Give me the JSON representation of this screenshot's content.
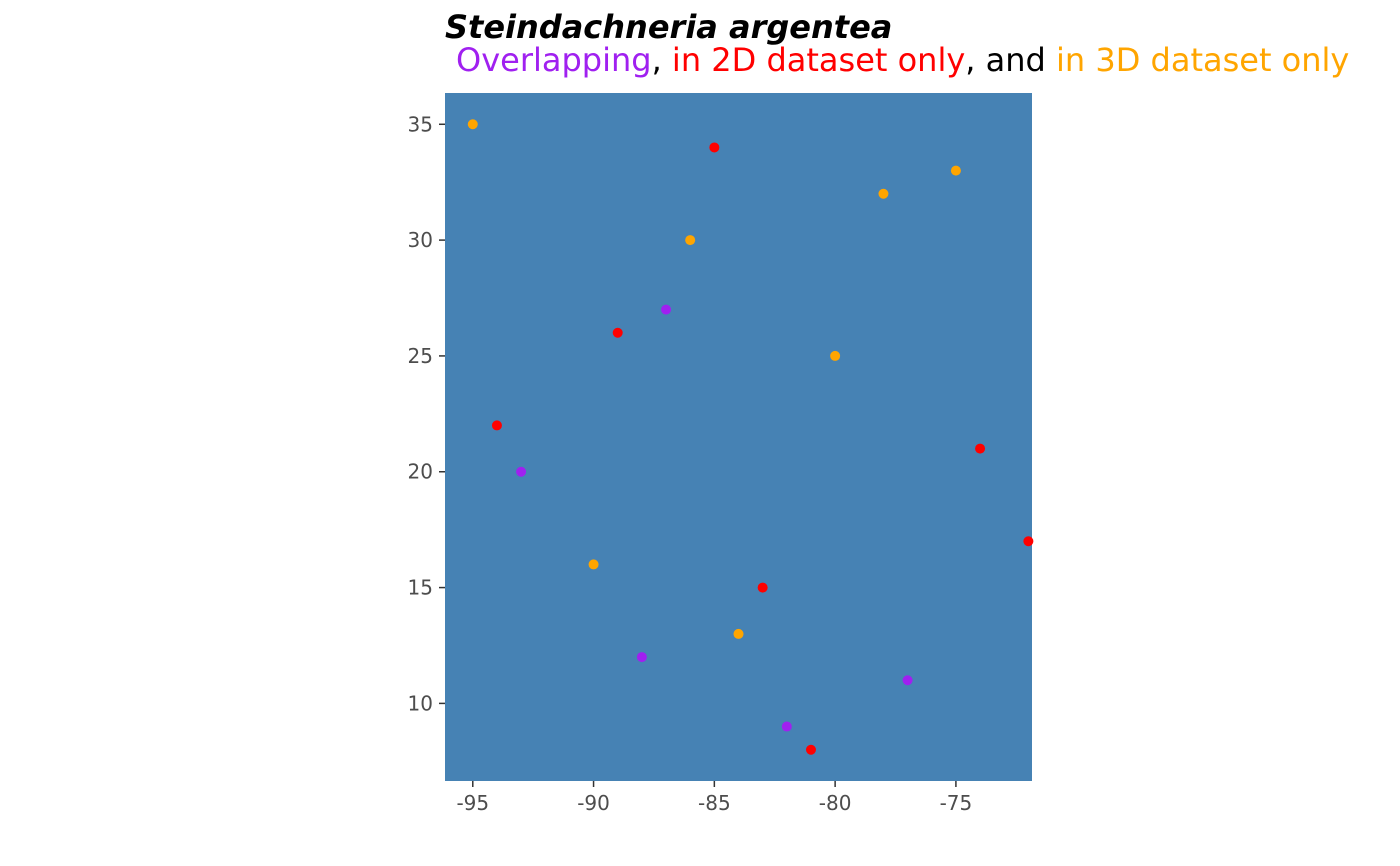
{
  "chart_data": {
    "type": "scatter",
    "title": "Steindachneria argentea",
    "subtitle_parts": [
      {
        "text": "Overlapping",
        "color": "#a020f0"
      },
      {
        "text": ", ",
        "color": "#000000"
      },
      {
        "text": "in 2D dataset only",
        "color": "#ff0000"
      },
      {
        "text": ", and ",
        "color": "#000000"
      },
      {
        "text": "in 3D dataset only",
        "color": "#ffa500"
      }
    ],
    "xlim": [
      -96.15,
      -71.85
    ],
    "ylim": [
      6.65,
      36.35
    ],
    "x_ticks": [
      -95,
      -90,
      -85,
      -80,
      -75
    ],
    "x_tick_labels": [
      "-95",
      "-90",
      "-85",
      "-80",
      "-75"
    ],
    "y_ticks": [
      10,
      15,
      20,
      25,
      30,
      35
    ],
    "y_tick_labels": [
      "10",
      "15",
      "20",
      "25",
      "30",
      "35"
    ],
    "xlabel": "",
    "ylabel": "",
    "grid": false,
    "panel_color": "#4682b4",
    "series": [
      {
        "color": "#a020f0",
        "points": [
          [
            -87,
            27
          ],
          [
            -93,
            20
          ],
          [
            -88,
            12
          ],
          [
            -77,
            11
          ],
          [
            -82,
            9
          ]
        ]
      },
      {
        "color": "#ff0000",
        "points": [
          [
            -85,
            34
          ],
          [
            -89,
            26
          ],
          [
            -94,
            22
          ],
          [
            -74,
            21
          ],
          [
            -72,
            17
          ],
          [
            -83,
            15
          ],
          [
            -81,
            8
          ]
        ]
      },
      {
        "color": "#ffa500",
        "points": [
          [
            -95,
            35
          ],
          [
            -75,
            33
          ],
          [
            -78,
            32
          ],
          [
            -86,
            30
          ],
          [
            -80,
            25
          ],
          [
            -90,
            16
          ],
          [
            -84,
            13
          ]
        ]
      }
    ]
  }
}
